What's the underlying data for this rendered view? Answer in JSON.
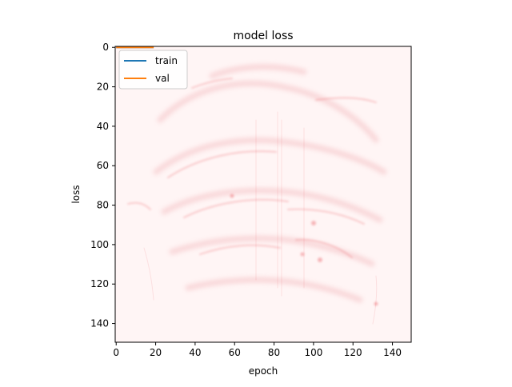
{
  "chart_data": {
    "type": "line",
    "title": "model loss",
    "xlabel": "epoch",
    "ylabel": "loss",
    "xlim": [
      -0.5,
      149.5
    ],
    "ylim": [
      149.5,
      -0.5
    ],
    "y_inverted": true,
    "x_ticks": [
      0,
      20,
      40,
      60,
      80,
      100,
      120,
      140
    ],
    "y_ticks": [
      0,
      20,
      40,
      60,
      80,
      100,
      120,
      140
    ],
    "grid": false,
    "legend": {
      "placement": "top-left"
    },
    "background": "faint red heatmap-like image (mostly near-white with light red streaks)",
    "series": [
      {
        "name": "train",
        "color": "#1f77b4",
        "x": [
          0,
          19
        ],
        "y": [
          0,
          0
        ]
      },
      {
        "name": "val",
        "color": "#ff7f0e",
        "x": [
          0,
          19
        ],
        "y": [
          0,
          0
        ]
      }
    ]
  },
  "colors": {
    "heat_base": "#fff5f5",
    "heat_streak": "#e8424a"
  }
}
